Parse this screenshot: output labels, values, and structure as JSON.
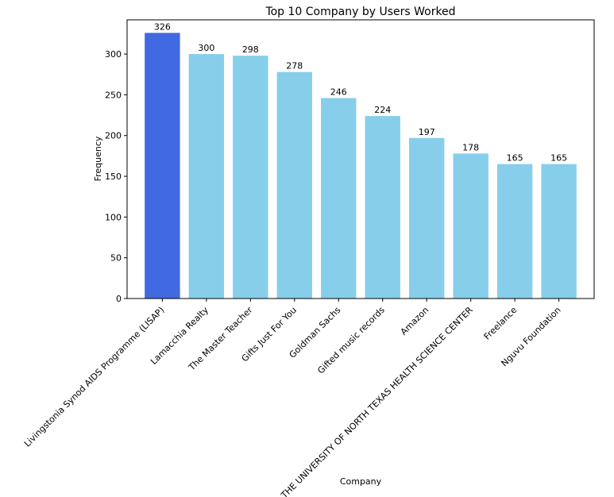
{
  "chart_data": {
    "type": "bar",
    "title": "Top 10 Company by Users Worked",
    "xlabel": "Company",
    "ylabel": "Frequency",
    "ylim": [
      0,
      342
    ],
    "yticks": [
      0,
      50,
      100,
      150,
      200,
      250,
      300
    ],
    "categories": [
      "Livingstonia Synod AIDS Programme (LISAP)",
      "Lamacchia Realty",
      "The Master Teacher",
      "Gifts Just For You",
      "Goldman Sachs",
      "Gifted music records",
      "Amazon",
      "THE UNIVERSITY OF NORTH TEXAS HEALTH SCIENCE CENTER",
      "Freelance",
      "Nguvu Foundation"
    ],
    "values": [
      326,
      300,
      298,
      278,
      246,
      224,
      197,
      178,
      165,
      165
    ],
    "colors": {
      "highlight": "#4169E1",
      "default": "#87CEEB"
    },
    "highlight_index": 0
  }
}
